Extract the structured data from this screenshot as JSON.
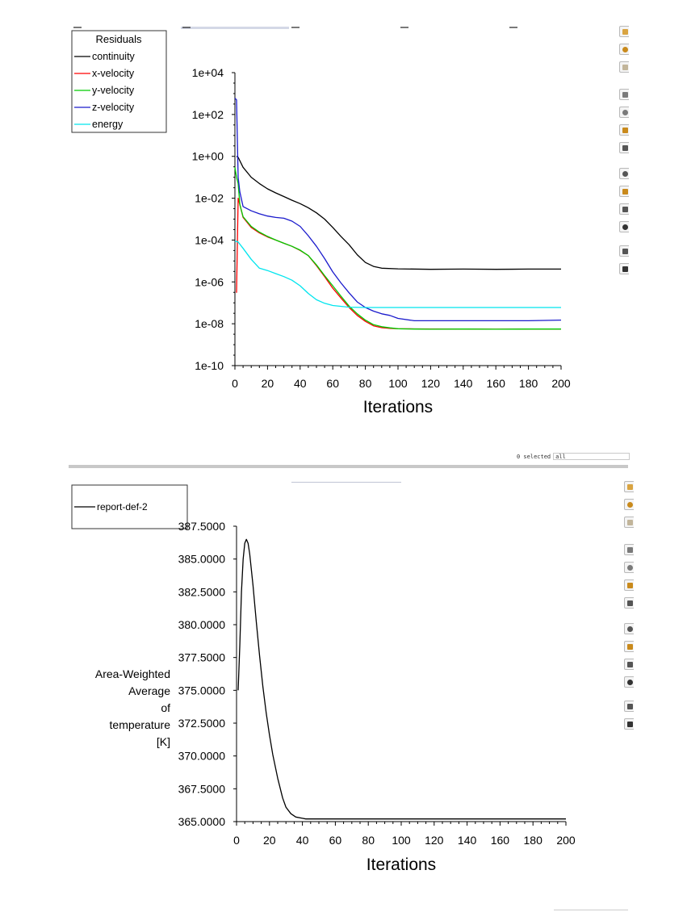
{
  "residuals_chart": {
    "legend_title": "Residuals",
    "xlabel": "Iterations",
    "x_ticks": [
      "0",
      "20",
      "40",
      "60",
      "80",
      "100",
      "120",
      "140",
      "160",
      "180",
      "200"
    ],
    "y_ticks": [
      "1e+04",
      "1e+02",
      "1e+00",
      "1e-02",
      "1e-04",
      "1e-06",
      "1e-08",
      "1e-10"
    ]
  },
  "report_chart": {
    "xlabel": "Iterations",
    "ylabel_lines": [
      "Area-Weighted",
      "Average",
      "of",
      "temperature",
      "[K]"
    ],
    "x_ticks": [
      "0",
      "20",
      "40",
      "60",
      "80",
      "100",
      "120",
      "140",
      "160",
      "180",
      "200"
    ],
    "y_ticks": [
      "387.5000",
      "385.0000",
      "382.5000",
      "380.0000",
      "377.5000",
      "375.0000",
      "372.5000",
      "370.0000",
      "367.5000",
      "365.0000"
    ]
  },
  "selection": {
    "count_label": "0 selected",
    "filter_value": "all"
  },
  "toolbar": {
    "top_icons": [
      "pan-icon",
      "rotate-icon",
      "zoom-icon",
      "fit-icon",
      "isometric-icon",
      "view-icon",
      "undo-icon",
      "chart-icon",
      "probe-icon",
      "report-icon",
      "print-icon",
      "window-icon",
      "settings-icon"
    ],
    "bottom_icons": [
      "pan-icon",
      "rotate-icon",
      "zoom-icon",
      "fit-icon",
      "isometric-icon",
      "view-icon",
      "undo-icon",
      "chart-icon",
      "probe-icon",
      "report-icon",
      "print-icon",
      "window-icon",
      "settings-icon"
    ]
  },
  "chart_data": [
    {
      "type": "line",
      "title": "",
      "xlabel": "Iterations",
      "ylabel": "",
      "yscale": "log",
      "xlim": [
        0,
        200
      ],
      "ylim": [
        1e-10,
        10000.0
      ],
      "grid": false,
      "legend": "top-left",
      "legend_title": "Residuals",
      "series": [
        {
          "name": "continuity",
          "color": "#000000",
          "x": [
            1,
            2,
            5,
            10,
            15,
            20,
            25,
            30,
            35,
            40,
            45,
            50,
            55,
            60,
            65,
            70,
            75,
            80,
            85,
            90,
            100,
            120,
            140,
            160,
            180,
            200
          ],
          "y": [
            1.0,
            0.9,
            0.3,
            0.1,
            0.05,
            0.028,
            0.018,
            0.012,
            0.008,
            0.0055,
            0.0035,
            0.002,
            0.001,
            0.0004,
            0.00015,
            6e-05,
            2e-05,
            8.5e-06,
            5.5e-06,
            4.5e-06,
            4.2e-06,
            4e-06,
            4.1e-06,
            4e-06,
            4.1e-06,
            4.1e-06
          ]
        },
        {
          "name": "x-velocity",
          "color": "#ff0000",
          "x": [
            1,
            2,
            3,
            5,
            10,
            15,
            20,
            25,
            30,
            35,
            40,
            45,
            50,
            55,
            60,
            65,
            70,
            75,
            80,
            85,
            90,
            95,
            100,
            110,
            120,
            140,
            160,
            180,
            200
          ],
          "y": [
            3e-07,
            0.01,
            0.005,
            0.0012,
            0.0004,
            0.00022,
            0.00014,
            0.0001,
            7e-05,
            5e-05,
            3.2e-05,
            1.8e-05,
            6e-06,
            1.8e-06,
            5e-07,
            1.7e-07,
            6e-08,
            2.5e-08,
            1.3e-08,
            8e-09,
            6.5e-09,
            6e-09,
            5.8e-09,
            5.7e-09,
            5.6e-09,
            5.6e-09,
            5.5e-09,
            5.6e-09,
            5.6e-09
          ]
        },
        {
          "name": "y-velocity",
          "color": "#00cc00",
          "x": [
            0,
            1,
            2,
            3,
            5,
            10,
            15,
            20,
            25,
            30,
            35,
            40,
            45,
            50,
            55,
            60,
            65,
            70,
            75,
            80,
            85,
            90,
            95,
            100,
            110,
            120,
            140,
            160,
            180,
            200
          ],
          "y": [
            0.3,
            0.1,
            0.05,
            0.005,
            0.0013,
            0.00045,
            0.00024,
            0.00015,
            0.0001,
            7e-05,
            5e-05,
            3.3e-05,
            1.8e-05,
            6.5e-06,
            2e-06,
            6.5e-07,
            2.1e-07,
            7e-08,
            3e-08,
            1.5e-08,
            9e-09,
            7.2e-09,
            6.4e-09,
            5.8e-09,
            5.6e-09,
            5.5e-09,
            5.6e-09,
            5.5e-09,
            5.6e-09,
            5.6e-09
          ]
        },
        {
          "name": "z-velocity",
          "color": "#1a1acc",
          "x": [
            0,
            1,
            2,
            3,
            5,
            10,
            15,
            20,
            25,
            30,
            35,
            40,
            45,
            50,
            55,
            60,
            65,
            70,
            75,
            80,
            85,
            90,
            95,
            100,
            110,
            120,
            140,
            160,
            180,
            200
          ],
          "y": [
            600,
            500,
            0.1,
            0.02,
            0.004,
            0.0025,
            0.0018,
            0.0014,
            0.0012,
            0.0011,
            0.0008,
            0.00045,
            0.00016,
            5e-05,
            1.3e-05,
            3e-06,
            9e-07,
            3e-07,
            1.1e-07,
            6e-08,
            4e-08,
            3e-08,
            2.5e-08,
            1.8e-08,
            1.4e-08,
            1.4e-08,
            1.4e-08,
            1.4e-08,
            1.4e-08,
            1.5e-08
          ]
        },
        {
          "name": "energy",
          "color": "#00e5ee",
          "x": [
            0,
            2,
            5,
            10,
            15,
            20,
            25,
            30,
            35,
            40,
            45,
            50,
            55,
            60,
            70,
            80,
            100,
            120,
            140,
            160,
            180,
            200
          ],
          "y": [
            9e-05,
            8e-05,
            4e-05,
            1.2e-05,
            4.5e-06,
            3.5e-06,
            2.5e-06,
            1.8e-06,
            1.2e-06,
            6.5e-07,
            2.8e-07,
            1.4e-07,
            9.5e-08,
            7.5e-08,
            6.2e-08,
            6e-08,
            6e-08,
            6e-08,
            6e-08,
            6e-08,
            6e-08,
            6e-08
          ]
        }
      ]
    },
    {
      "type": "line",
      "title": "",
      "xlabel": "Iterations",
      "ylabel": "Area-Weighted Average of temperature [K]",
      "xlim": [
        0,
        200
      ],
      "ylim": [
        365.0,
        387.5
      ],
      "grid": false,
      "legend": "top-left",
      "series": [
        {
          "name": "report-def-2",
          "color": "#000000",
          "x": [
            1,
            2,
            3,
            4,
            5,
            6,
            7,
            8,
            10,
            12,
            14,
            16,
            18,
            20,
            22,
            25,
            28,
            30,
            33,
            36,
            40,
            42,
            45,
            50,
            60,
            80,
            100,
            120,
            140,
            160,
            180,
            200
          ],
          "y": [
            375.0,
            378.5,
            382.5,
            385.0,
            386.2,
            386.5,
            386.2,
            385.4,
            383.0,
            380.2,
            377.6,
            375.3,
            373.3,
            371.6,
            370.1,
            368.3,
            366.8,
            366.1,
            365.6,
            365.35,
            365.25,
            365.2,
            365.2,
            365.2,
            365.2,
            365.2,
            365.2,
            365.2,
            365.2,
            365.2,
            365.2,
            365.2
          ]
        }
      ]
    }
  ]
}
